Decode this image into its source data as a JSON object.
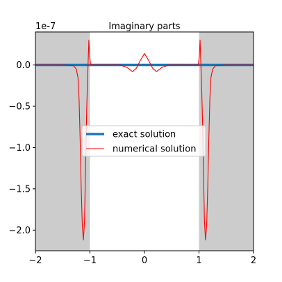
{
  "chart_data": {
    "type": "line",
    "title": "Imaginary parts",
    "xlabel": "",
    "ylabel": "",
    "y_offset_label": "1e-7",
    "xlim": [
      -2,
      2
    ],
    "ylim": [
      -2.25,
      0.4
    ],
    "x_ticks": [
      -2,
      -1,
      0,
      1,
      2
    ],
    "x_tick_labels": [
      "−2",
      "−1",
      "0",
      "1",
      "2"
    ],
    "y_ticks": [
      0.0,
      -0.5,
      -1.0,
      -1.5,
      -2.0
    ],
    "y_tick_labels": [
      "0.0",
      "−0.5",
      "−1.0",
      "−1.5",
      "−2.0"
    ],
    "shaded_regions": [
      [
        -2,
        -1
      ],
      [
        1,
        2
      ]
    ],
    "grid": false,
    "legend_position": "center",
    "colors": {
      "exact": "#1f77b4",
      "numerical": "#ff0000",
      "shade": "#cccccc"
    },
    "series": [
      {
        "name": "exact solution",
        "x": [
          -2,
          2
        ],
        "values": [
          0,
          0
        ]
      },
      {
        "name": "numerical solution",
        "x": [
          -2.0,
          -1.5,
          -1.3,
          -1.25,
          -1.22,
          -1.2,
          -1.18,
          -1.16,
          -1.14,
          -1.12,
          -1.1,
          -1.08,
          -1.06,
          -1.045,
          -1.035,
          -1.02,
          -1.005,
          -0.99,
          -0.98,
          -0.95,
          -0.9,
          -0.6,
          -0.45,
          -0.32,
          -0.22,
          -0.15,
          -0.08,
          0.0,
          0.08,
          0.15,
          0.22,
          0.32,
          0.45,
          0.6,
          0.9,
          0.95,
          0.98,
          0.99,
          1.005,
          1.02,
          1.035,
          1.045,
          1.06,
          1.08,
          1.1,
          1.12,
          1.14,
          1.16,
          1.18,
          1.2,
          1.22,
          1.25,
          1.3,
          1.5,
          2.0
        ],
        "values": [
          0.0,
          0.0,
          -0.01,
          -0.05,
          -0.15,
          -0.4,
          -0.9,
          -1.5,
          -1.95,
          -2.12,
          -1.9,
          -1.2,
          -0.55,
          -0.2,
          0.0,
          0.3,
          0.1,
          0.02,
          0.0,
          0.0,
          0.0,
          0.0,
          0.0,
          -0.03,
          -0.08,
          -0.04,
          0.05,
          0.14,
          0.05,
          -0.04,
          -0.08,
          -0.03,
          0.0,
          0.0,
          0.0,
          0.0,
          0.0,
          0.02,
          0.1,
          0.3,
          0.0,
          -0.2,
          -0.55,
          -1.2,
          -1.9,
          -2.12,
          -1.95,
          -1.5,
          -0.9,
          -0.4,
          -0.15,
          -0.05,
          -0.01,
          0.0,
          0.0
        ]
      }
    ]
  }
}
